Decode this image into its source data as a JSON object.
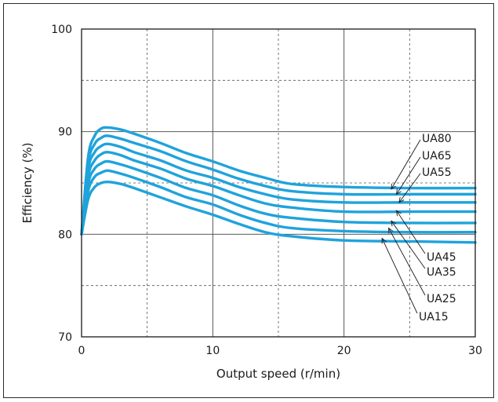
{
  "chart_data": {
    "type": "line",
    "title": "",
    "xlabel": "Output speed (r/min)",
    "ylabel": "Efficiency (%)",
    "xlim": [
      0,
      30
    ],
    "ylim": [
      70,
      100
    ],
    "x_ticks": [
      0,
      10,
      20,
      30
    ],
    "y_ticks": [
      70,
      80,
      90,
      100
    ],
    "grid": {
      "major": "solid",
      "minor": "dashed"
    },
    "line_color": "#1fa3dc",
    "series": [
      {
        "name": "UA80",
        "x": [
          0,
          0.5,
          1,
          1.5,
          2,
          3,
          4,
          6,
          8,
          10,
          12,
          14,
          16,
          20,
          25,
          30
        ],
        "y": [
          80.0,
          87.5,
          89.6,
          90.3,
          90.4,
          90.2,
          89.8,
          88.9,
          87.9,
          87.1,
          86.2,
          85.5,
          84.9,
          84.6,
          84.5,
          84.5
        ],
        "label_anchor": [
          23.6,
          84.4
        ]
      },
      {
        "name": "UA65",
        "x": [
          0,
          0.5,
          1,
          1.5,
          2,
          3,
          4,
          6,
          8,
          10,
          12,
          14,
          16,
          20,
          25,
          30
        ],
        "y": [
          80.0,
          86.9,
          88.8,
          89.4,
          89.6,
          89.3,
          88.9,
          88.1,
          87.1,
          86.3,
          85.4,
          84.7,
          84.2,
          83.9,
          83.9,
          83.9
        ],
        "label_anchor": [
          24.0,
          83.9
        ]
      },
      {
        "name": "UA55",
        "x": [
          0,
          0.5,
          1,
          1.5,
          2,
          3,
          4,
          6,
          8,
          10,
          12,
          14,
          16,
          20,
          25,
          30
        ],
        "y": [
          80.0,
          86.3,
          88.0,
          88.6,
          88.8,
          88.5,
          88.0,
          87.2,
          86.2,
          85.5,
          84.6,
          83.9,
          83.4,
          83.1,
          83.1,
          83.1
        ],
        "label_anchor": [
          24.2,
          83.1
        ]
      },
      {
        "name": "UA45",
        "x": [
          0,
          0.5,
          1,
          1.5,
          2,
          3,
          4,
          6,
          8,
          10,
          12,
          14,
          16,
          20,
          25,
          30
        ],
        "y": [
          80.0,
          85.6,
          87.2,
          87.8,
          88.0,
          87.7,
          87.2,
          86.4,
          85.4,
          84.7,
          83.8,
          83.0,
          82.6,
          82.2,
          82.2,
          82.2
        ],
        "label_anchor": [
          24.0,
          82.3
        ]
      },
      {
        "name": "UA35",
        "x": [
          0,
          0.5,
          1,
          1.5,
          2,
          3,
          4,
          6,
          8,
          10,
          12,
          14,
          16,
          20,
          25,
          30
        ],
        "y": [
          80.0,
          84.9,
          86.4,
          86.9,
          87.1,
          86.8,
          86.4,
          85.5,
          84.5,
          83.8,
          82.8,
          82.0,
          81.6,
          81.2,
          81.1,
          81.1
        ],
        "label_anchor": [
          23.6,
          81.3
        ]
      },
      {
        "name": "UA25",
        "x": [
          0,
          0.5,
          1,
          1.5,
          2,
          3,
          4,
          6,
          8,
          10,
          12,
          14,
          16,
          20,
          25,
          30
        ],
        "y": [
          80.0,
          84.2,
          85.6,
          86.0,
          86.2,
          85.9,
          85.5,
          84.6,
          83.6,
          82.9,
          81.9,
          81.1,
          80.6,
          80.3,
          80.2,
          80.2
        ],
        "label_anchor": [
          23.4,
          80.6
        ]
      },
      {
        "name": "UA15",
        "x": [
          0,
          0.5,
          1,
          1.5,
          2,
          3,
          4,
          6,
          8,
          10,
          12,
          14,
          16,
          20,
          25,
          30
        ],
        "y": [
          80.0,
          83.4,
          84.6,
          85.0,
          85.1,
          84.9,
          84.5,
          83.6,
          82.7,
          81.9,
          81.0,
          80.2,
          79.8,
          79.4,
          79.3,
          79.2
        ],
        "label_anchor": [
          22.9,
          79.6
        ]
      }
    ]
  }
}
